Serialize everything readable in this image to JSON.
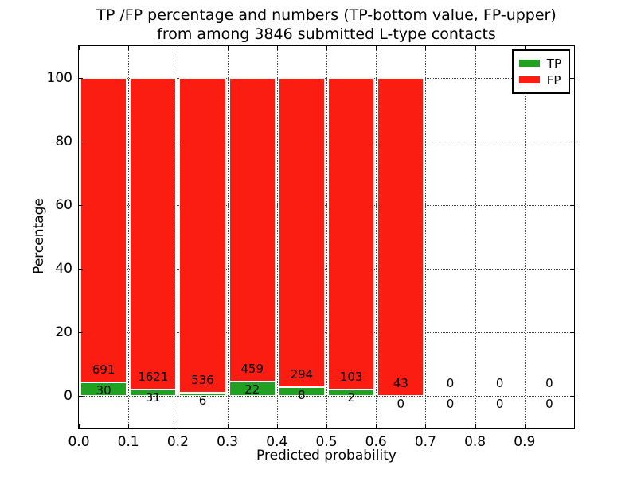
{
  "title": {
    "line1": "TP /FP percentage and numbers (TP-bottom value, FP-upper)",
    "line2": "from among 3846 submitted L-type contacts"
  },
  "chart_data": {
    "type": "bar",
    "stacked": true,
    "title": "TP /FP percentage and numbers (TP-bottom value, FP-upper) from among 3846 submitted L-type contacts",
    "xlabel": "Predicted probability",
    "ylabel": "Percentage",
    "total_contacts": 3846,
    "xlim": [
      0.0,
      1.0
    ],
    "ylim": [
      -10,
      110
    ],
    "bin_width": 0.1,
    "grid": "dotted",
    "x_tick_labels": [
      "0.0",
      "0.1",
      "0.2",
      "0.3",
      "0.4",
      "0.5",
      "0.6",
      "0.7",
      "0.8",
      "0.9"
    ],
    "x_tick_values": [
      0.0,
      0.1,
      0.2,
      0.3,
      0.4,
      0.5,
      0.6,
      0.7,
      0.8,
      0.9
    ],
    "y_tick_labels": [
      "0",
      "20",
      "40",
      "60",
      "80",
      "100"
    ],
    "y_tick_values": [
      0,
      20,
      40,
      60,
      80,
      100
    ],
    "categories": [
      "0.0-0.1",
      "0.1-0.2",
      "0.2-0.3",
      "0.3-0.4",
      "0.4-0.5",
      "0.5-0.6",
      "0.6-0.7",
      "0.7-0.8",
      "0.8-0.9",
      "0.9-1.0"
    ],
    "bin_starts": [
      0.0,
      0.1,
      0.2,
      0.3,
      0.4,
      0.5,
      0.6,
      0.7,
      0.8,
      0.9
    ],
    "series": [
      {
        "name": "TP",
        "color": "#22a022",
        "counts": [
          30,
          31,
          6,
          22,
          8,
          2,
          0,
          0,
          0,
          0
        ]
      },
      {
        "name": "FP",
        "color": "#fc1d12",
        "counts": [
          691,
          1621,
          536,
          459,
          294,
          103,
          43,
          0,
          0,
          0
        ]
      }
    ],
    "value_note": "bars show percentage TP vs FP per bin summing to 100; labels show raw counts, TP below, FP above",
    "legend": {
      "position": "upper right",
      "entries": [
        "TP",
        "FP"
      ]
    }
  }
}
